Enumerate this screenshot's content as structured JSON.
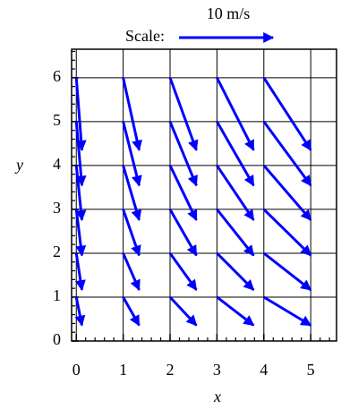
{
  "chart_data": {
    "type": "quiver",
    "key": {
      "text": "Scale:",
      "label": "10 m/s",
      "value": 10
    },
    "xlabel": "x",
    "ylabel": "y",
    "color": "#0000ff",
    "x": [
      0,
      0,
      0,
      0,
      0,
      0,
      1,
      1,
      1,
      1,
      1,
      1,
      2,
      2,
      2,
      2,
      2,
      2,
      3,
      3,
      3,
      3,
      3,
      3,
      4,
      4,
      4,
      4,
      4,
      4
    ],
    "y": [
      1,
      2,
      3,
      4,
      5,
      6,
      1,
      2,
      3,
      4,
      5,
      6,
      1,
      2,
      3,
      4,
      5,
      6,
      1,
      2,
      3,
      4,
      5,
      6,
      1,
      2,
      3,
      4,
      5,
      6
    ],
    "u": [
      0.6,
      0.6,
      0.6,
      0.6,
      0.6,
      0.6,
      1.7,
      1.7,
      1.7,
      1.7,
      1.7,
      1.7,
      2.8,
      2.8,
      2.8,
      2.8,
      2.8,
      2.8,
      3.9,
      3.9,
      3.9,
      3.9,
      3.9,
      3.9,
      5.0,
      5.0,
      5.0,
      5.0,
      5.0,
      5.0
    ],
    "v": [
      -3.0,
      -3.9,
      -4.9,
      -5.8,
      -6.8,
      -7.7,
      -3.0,
      -3.9,
      -4.9,
      -5.8,
      -6.8,
      -7.7,
      -3.0,
      -3.9,
      -4.9,
      -5.8,
      -6.8,
      -7.7,
      -3.0,
      -3.9,
      -4.9,
      -5.8,
      -6.8,
      -7.7,
      -3.0,
      -3.9,
      -4.9,
      -5.8,
      -6.8,
      -7.7
    ],
    "xlim": [
      -0.1,
      5.55
    ],
    "ylim": [
      0,
      6.65
    ],
    "xticks": [
      0,
      1,
      2,
      3,
      4,
      5
    ],
    "yticks": [
      0,
      1,
      2,
      3,
      4,
      5,
      6
    ],
    "minor_ticks_per_major": 5,
    "grid": true
  }
}
